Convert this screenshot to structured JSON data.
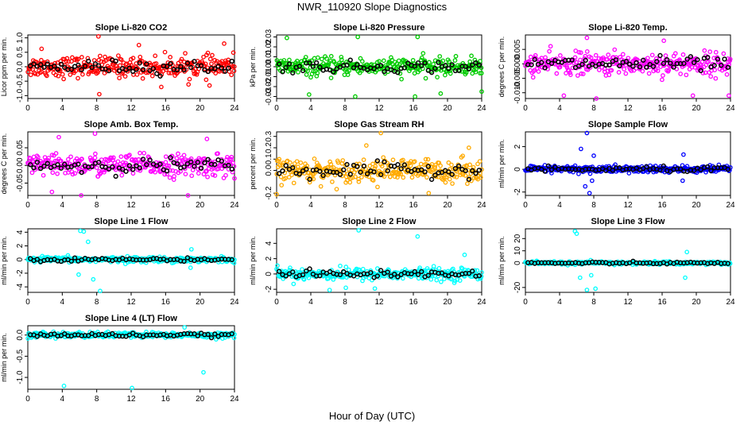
{
  "title": "NWR_110920  Slope Diagnostics",
  "x_axis_title": "Hour of Day (UTC)",
  "chart_data": [
    {
      "type": "scatter",
      "title": "Slope Li-820 CO2",
      "ylabel": "Licor ppm per min.",
      "color": "#ff0000",
      "xlim": [
        0,
        24
      ],
      "ylim": [
        -1.1,
        1.1
      ],
      "xticks": [
        0,
        4,
        8,
        12,
        16,
        20,
        24
      ],
      "yticks": [
        -1.0,
        -0.5,
        0.0,
        0.5,
        1.0
      ],
      "yticklabels": [
        "-1.0",
        "-0.5",
        "0.0",
        "0.5",
        "1.0"
      ],
      "spread": 0.32,
      "outliers": [
        [
          8.2,
          1.05
        ],
        [
          8.3,
          -0.95
        ],
        [
          1.6,
          0.62
        ],
        [
          22.8,
          0.8
        ],
        [
          12.9,
          0.75
        ],
        [
          15.5,
          -0.7
        ],
        [
          21.1,
          -0.65
        ]
      ]
    },
    {
      "type": "scatter",
      "title": "Slope Li-820 Pressure",
      "ylabel": "kPa per min.",
      "color": "#00cc00",
      "xlim": [
        0,
        24
      ],
      "ylim": [
        -0.032,
        0.032
      ],
      "xticks": [
        0,
        4,
        8,
        12,
        16,
        20,
        24
      ],
      "yticks": [
        -0.03,
        -0.02,
        -0.01,
        0.0,
        0.01,
        0.02,
        0.03
      ],
      "yticklabels": [
        "-0.03",
        "-0.02",
        "-0.01",
        "0.00",
        "0.01",
        "0.02",
        "0.03"
      ],
      "spread": 0.008,
      "outliers": [
        [
          1.2,
          0.029
        ],
        [
          9.5,
          0.03
        ],
        [
          16.5,
          0.03
        ],
        [
          9.2,
          -0.03
        ],
        [
          3.8,
          -0.028
        ],
        [
          16.2,
          -0.03
        ],
        [
          19.2,
          -0.027
        ],
        [
          24,
          -0.025
        ]
      ]
    },
    {
      "type": "scatter",
      "title": "Slope Li-820 Temp.",
      "ylabel": "degrees C per min.",
      "color": "#ff00ff",
      "xlim": [
        0,
        24
      ],
      "ylim": [
        -0.012,
        0.01
      ],
      "xticks": [
        0,
        4,
        8,
        12,
        16,
        20,
        24
      ],
      "yticks": [
        -0.01,
        -0.005,
        0.0,
        0.005
      ],
      "yticklabels": [
        "-0.010",
        "-0.005",
        "0.000",
        "0.005"
      ],
      "spread": 0.0035,
      "outliers": [
        [
          7.2,
          0.009
        ],
        [
          8.3,
          -0.012
        ],
        [
          16.2,
          0.008
        ],
        [
          4.5,
          -0.011
        ],
        [
          19.6,
          -0.011
        ],
        [
          23.8,
          -0.011
        ]
      ]
    },
    {
      "type": "scatter",
      "title": "Slope Amb. Box Temp.",
      "ylabel": "degrees C per min.",
      "color": "#ff00ff",
      "xlim": [
        0,
        24
      ],
      "ylim": [
        -0.085,
        0.095
      ],
      "xticks": [
        0,
        4,
        8,
        12,
        16,
        20,
        24
      ],
      "yticks": [
        -0.05,
        0.0,
        0.05
      ],
      "yticklabels": [
        "-0.05",
        "0.00",
        "0.05"
      ],
      "spread": 0.028,
      "outliers": [
        [
          7.8,
          0.09
        ],
        [
          3.6,
          0.08
        ],
        [
          20.8,
          0.075
        ],
        [
          18.6,
          -0.085
        ],
        [
          6.2,
          -0.085
        ],
        [
          2.8,
          -0.075
        ]
      ]
    },
    {
      "type": "scatter",
      "title": "Slope Gas Stream RH",
      "ylabel": "percent per min.",
      "color": "#ffaa00",
      "xlim": [
        0,
        24
      ],
      "ylim": [
        -0.22,
        0.34
      ],
      "xticks": [
        0,
        4,
        8,
        12,
        16,
        20,
        24
      ],
      "yticks": [
        -0.2,
        0.0,
        0.1,
        0.2,
        0.3
      ],
      "yticklabels": [
        "-0.2",
        "0.0",
        "0.1",
        "0.2",
        "0.3"
      ],
      "spread": 0.09,
      "outliers": [
        [
          12.2,
          0.33
        ],
        [
          10.5,
          0.22
        ],
        [
          0,
          -0.21
        ],
        [
          17.8,
          -0.2
        ],
        [
          22.5,
          0.2
        ]
      ]
    },
    {
      "type": "scatter",
      "title": "Slope Sample Flow",
      "ylabel": "ml/min per min.",
      "color": "#0000ff",
      "xlim": [
        0,
        24
      ],
      "ylim": [
        -2.3,
        3.3
      ],
      "xticks": [
        0,
        4,
        8,
        12,
        16,
        20,
        24
      ],
      "yticks": [
        -2,
        0,
        2
      ],
      "yticklabels": [
        "-2",
        "0",
        "2"
      ],
      "spread": 0.3,
      "outliers": [
        [
          7.2,
          3.2
        ],
        [
          7.5,
          -2.1
        ],
        [
          6.5,
          1.8
        ],
        [
          7.0,
          -1.5
        ],
        [
          8.0,
          1.2
        ],
        [
          18.5,
          1.3
        ],
        [
          7.8,
          -1.0
        ],
        [
          18.4,
          -1.0
        ]
      ]
    },
    {
      "type": "scatter",
      "title": "Slope Line 1 Flow",
      "ylabel": "ml/min per min.",
      "color": "#00ffff",
      "xlim": [
        0,
        24
      ],
      "ylim": [
        -4.8,
        4.5
      ],
      "xticks": [
        0,
        4,
        8,
        12,
        16,
        20,
        24
      ],
      "yticks": [
        -4,
        -2,
        0,
        2,
        4
      ],
      "yticklabels": [
        "-4",
        "-2",
        "0",
        "2",
        "4"
      ],
      "spread": 0.35,
      "outliers": [
        [
          6.1,
          4.2
        ],
        [
          6.5,
          4.1
        ],
        [
          8.4,
          -4.6
        ],
        [
          7.6,
          -2.9
        ],
        [
          5.9,
          -2.2
        ],
        [
          7.0,
          2.6
        ],
        [
          19.0,
          1.5
        ],
        [
          18.9,
          -1.2
        ]
      ]
    },
    {
      "type": "scatter",
      "title": "Slope Line 2 Flow",
      "ylabel": "ml/min per min.",
      "color": "#00ffff",
      "xlim": [
        0,
        24
      ],
      "ylim": [
        -2.4,
        5.9
      ],
      "xticks": [
        0,
        4,
        8,
        12,
        16,
        20,
        24
      ],
      "yticks": [
        -2,
        0,
        2,
        4
      ],
      "yticklabels": [
        "-2",
        "0",
        "2",
        "4"
      ],
      "spread": 0.7,
      "outliers": [
        [
          9.6,
          5.7
        ],
        [
          16.5,
          4.9
        ],
        [
          6.2,
          -2.1
        ],
        [
          8.1,
          -1.8
        ],
        [
          11.5,
          -1.9
        ],
        [
          22.0,
          2.5
        ]
      ]
    },
    {
      "type": "scatter",
      "title": "Slope Line 3 Flow",
      "ylabel": "ml/min per min.",
      "color": "#00ffff",
      "xlim": [
        0,
        24
      ],
      "ylim": [
        -24,
        28
      ],
      "xticks": [
        0,
        4,
        8,
        12,
        16,
        20,
        24
      ],
      "yticks": [
        -20,
        0,
        10,
        20
      ],
      "yticklabels": [
        "-20",
        "0",
        "10",
        "20"
      ],
      "spread": 1.2,
      "outliers": [
        [
          5.8,
          26
        ],
        [
          6.0,
          24
        ],
        [
          7.2,
          -22
        ],
        [
          8.2,
          -21
        ],
        [
          6.4,
          -12
        ],
        [
          7.7,
          -10
        ],
        [
          18.7,
          -12
        ],
        [
          18.9,
          9
        ]
      ]
    },
    {
      "type": "scatter",
      "title": "Slope Line 4 (LT) Flow",
      "ylabel": "ml/min per min.",
      "color": "#00ffff",
      "xlim": [
        0,
        24
      ],
      "ylim": [
        -1.28,
        0.22
      ],
      "xticks": [
        0,
        4,
        8,
        12,
        16,
        20,
        24
      ],
      "yticks": [
        -1.0,
        -0.5,
        0.0
      ],
      "yticklabels": [
        "-1.0",
        "-0.5",
        "0.0"
      ],
      "spread": 0.06,
      "outliers": [
        [
          4.2,
          -1.2
        ],
        [
          12.1,
          -1.25
        ],
        [
          20.4,
          -0.88
        ],
        [
          18.2,
          0.18
        ]
      ]
    }
  ]
}
